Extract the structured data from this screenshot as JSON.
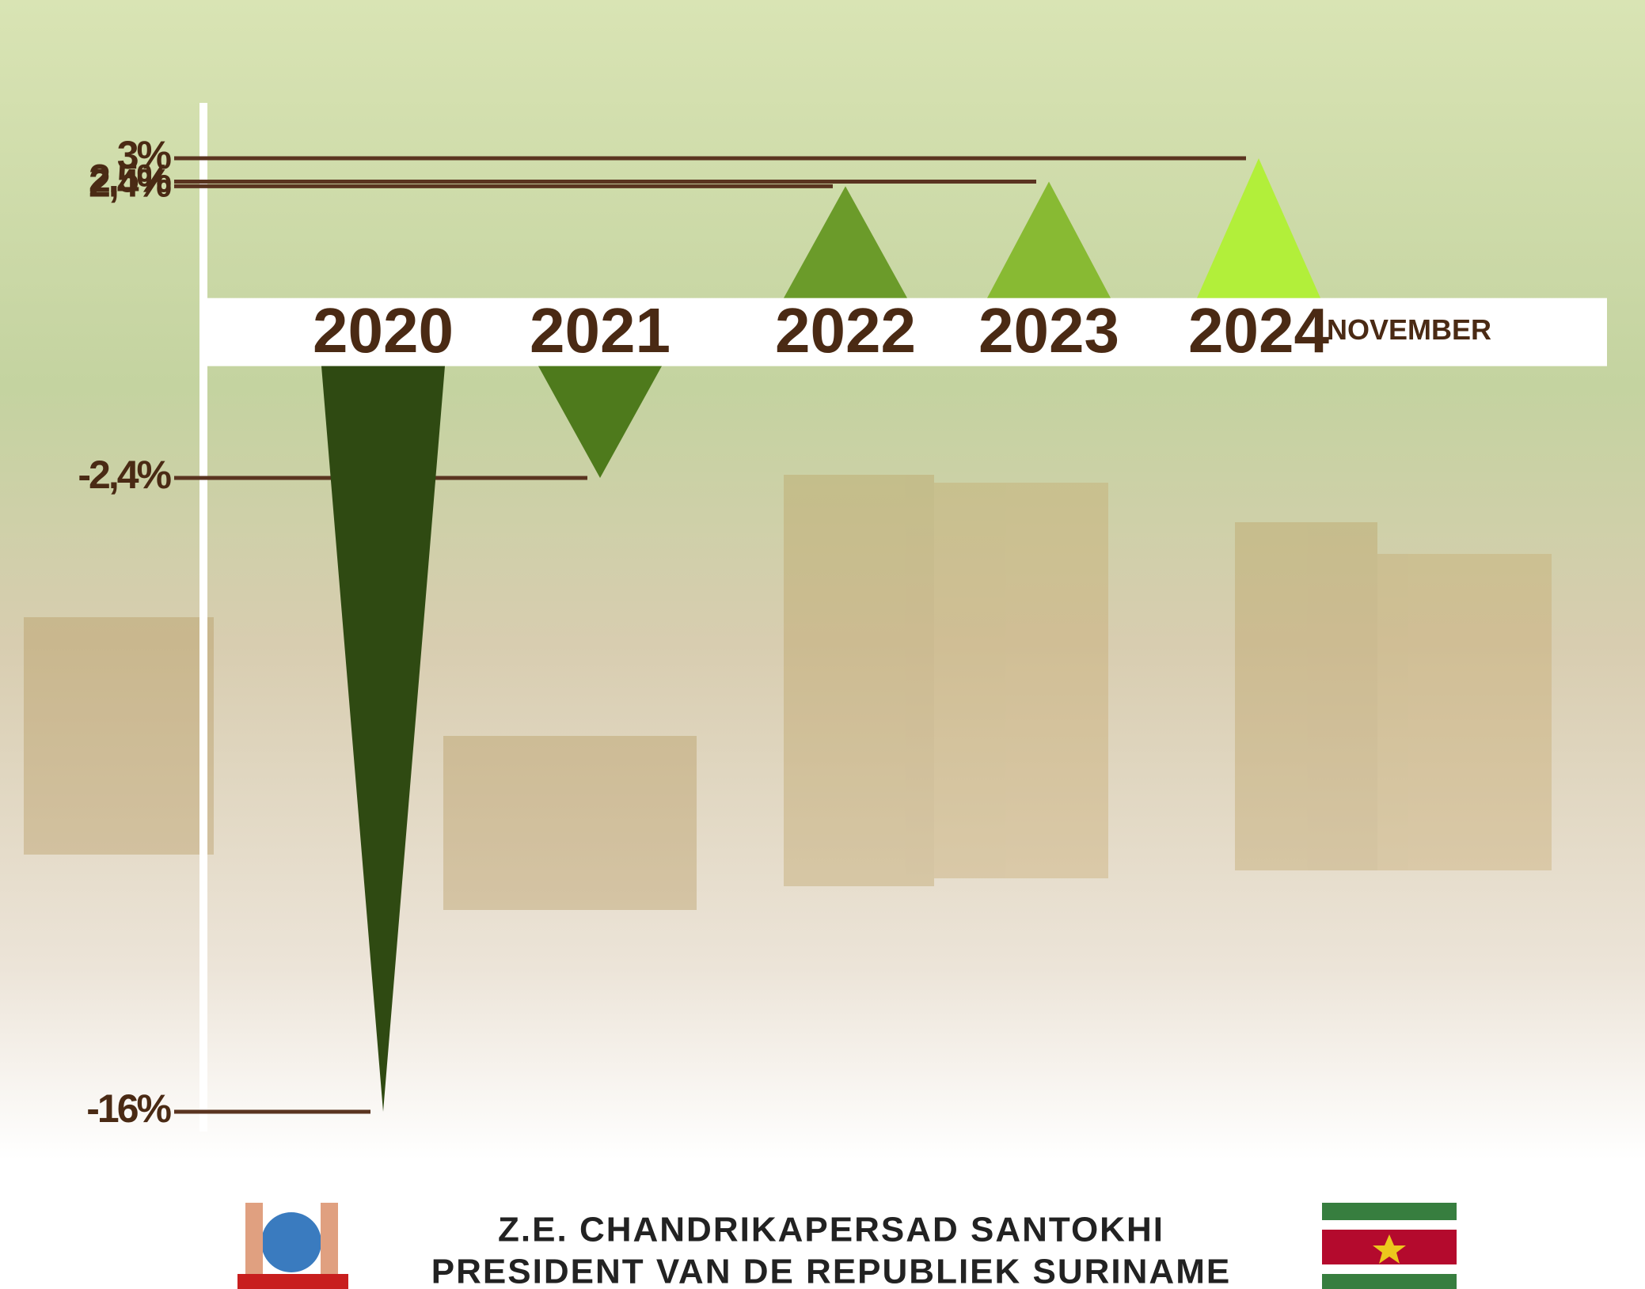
{
  "chart_data": {
    "type": "bar",
    "categories": [
      "2020",
      "2021",
      "2022",
      "2023",
      "2024"
    ],
    "values": [
      -16,
      -2.4,
      2.4,
      2.5,
      3
    ],
    "value_labels": [
      "-16%",
      "-2,4%",
      "2,4%",
      "2.5%",
      "3%"
    ],
    "colors": [
      "#2f4a12",
      "#4e7a1c",
      "#6b9b2a",
      "#88ba33",
      "#b2ef3a"
    ],
    "annotation": "NOVEMBER",
    "ylim": [
      -16,
      3
    ]
  },
  "footer": {
    "lines": [
      "Z.E. CHANDRIKAPERSAD SANTOKHI",
      "PRESIDENT VAN DE REPUBLIEK SURINAME"
    ]
  }
}
